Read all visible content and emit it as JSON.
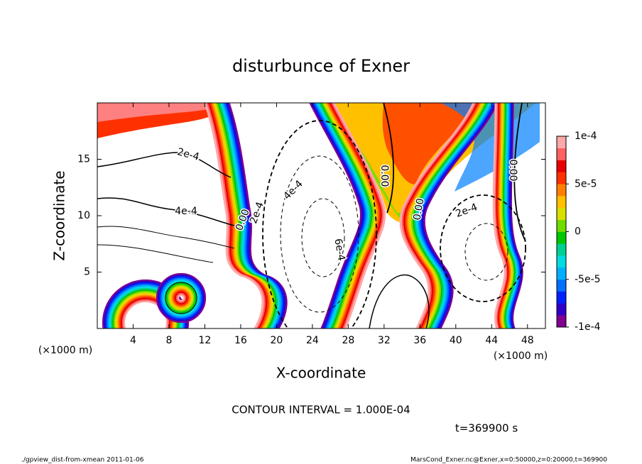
{
  "chart_data": {
    "type": "contour",
    "title": "disturbunce of Exner",
    "xlabel": "X-coordinate",
    "ylabel": "Z-coordinate",
    "x_unit": "(×1000 m)",
    "xlim": [
      0,
      50
    ],
    "xticks": [
      4,
      8,
      12,
      16,
      20,
      24,
      28,
      32,
      36,
      40,
      44,
      48
    ],
    "ylim": [
      0,
      20
    ],
    "yticks": [
      5,
      10,
      15
    ],
    "colorbar": {
      "lim": [
        -0.0001,
        0.0001
      ],
      "ticks": [
        {
          "value": 0.0001,
          "label": "1e-4"
        },
        {
          "value": 5e-05,
          "label": "5e-5"
        },
        0,
        {
          "value": -5e-05,
          "label": "-5e-5"
        },
        {
          "value": -0.0001,
          "label": "-1e-4"
        }
      ],
      "colors": [
        "#800090",
        "#3000c8",
        "#0020ff",
        "#0070ff",
        "#00b0ff",
        "#00dce0",
        "#00d090",
        "#00c800",
        "#70dc00",
        "#d8e000",
        "#ffc000",
        "#ff8000",
        "#ff3000",
        "#e80000",
        "#ff6060",
        "#ffa8a8"
      ]
    },
    "contour_labels": [
      "2e-4",
      "4e-4",
      "0.00",
      "2e-4",
      "4e-4",
      "6e-4",
      "0.00",
      "0.00",
      "2e-4",
      "0.00"
    ],
    "contour_interval": "CONTOUR INTERVAL = 1.000E-04",
    "time": "t=369900 s",
    "footer_left": "./gpview_dist-from-xmean  2011-01-06",
    "footer_right": "MarsCond_Exner.nc@Exner,x=0:50000,z=0:20000,t=369900"
  }
}
